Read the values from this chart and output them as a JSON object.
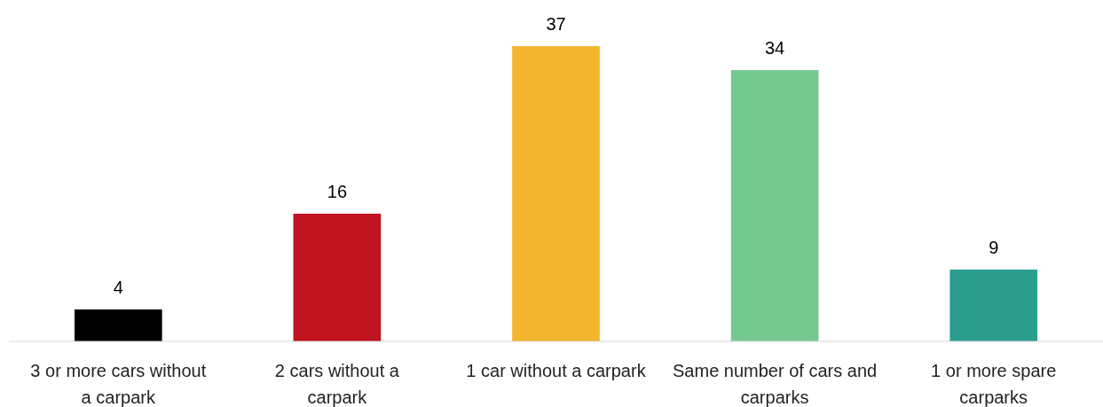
{
  "chart_data": {
    "type": "bar",
    "categories": [
      "3 or more cars without a carpark",
      "2 cars without a carpark",
      "1 car without a carpark",
      "Same number of cars and carparks",
      "1 or more spare carparks"
    ],
    "values": [
      4,
      16,
      37,
      34,
      9
    ],
    "colors": [
      "#000000",
      "#c0121f",
      "#f3b52d",
      "#76c893",
      "#2a9d8f"
    ],
    "data_labels": true
  }
}
